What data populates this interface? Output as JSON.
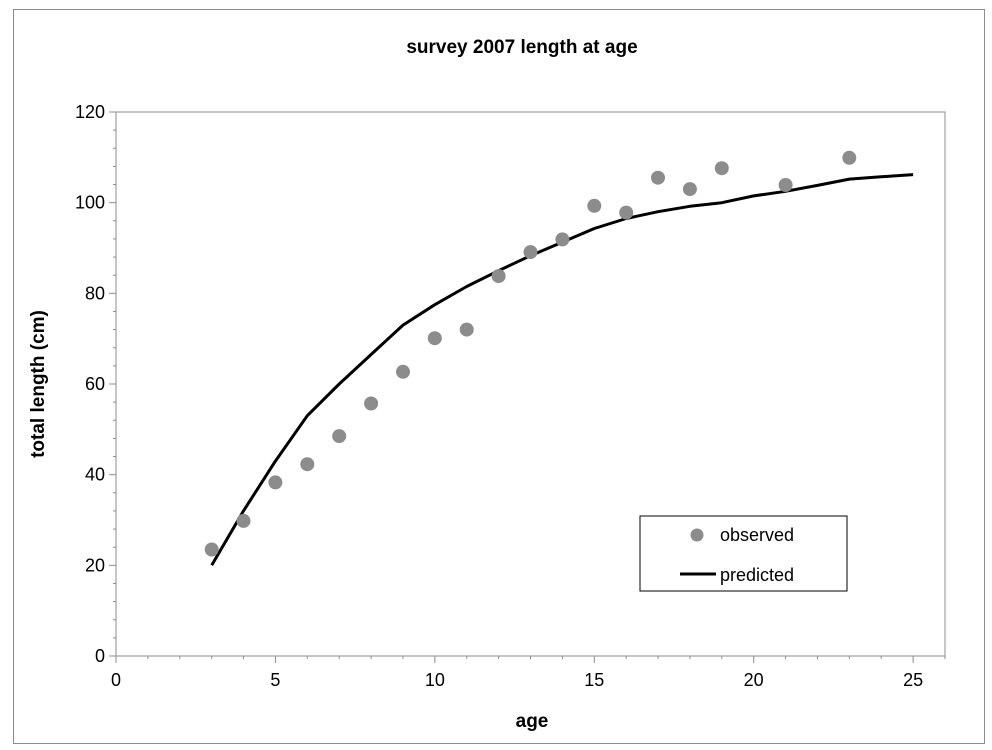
{
  "chart_data": {
    "type": "scatter",
    "title": "survey 2007 length at age",
    "xlabel": "age",
    "ylabel": "total length (cm)",
    "xlim": [
      0,
      26
    ],
    "ylim": [
      0,
      120
    ],
    "x_ticks": [
      0,
      5,
      10,
      15,
      20,
      25
    ],
    "y_ticks": [
      0,
      20,
      40,
      60,
      80,
      100,
      120
    ],
    "x_minor_step": 1,
    "y_minor_step": 4,
    "grid": false,
    "legend_position": "bottom-right",
    "series": [
      {
        "name": "observed",
        "kind": "points",
        "color": "#8c8c8c",
        "x": [
          3,
          4,
          5,
          6,
          7,
          8,
          9,
          10,
          11,
          12,
          13,
          14,
          15,
          16,
          17,
          18,
          19,
          21,
          23
        ],
        "y": [
          23.5,
          29.8,
          38.3,
          42.3,
          48.5,
          55.7,
          62.7,
          70.1,
          72,
          83.8,
          89.1,
          91.9,
          99.3,
          97.8,
          105.5,
          103,
          107.6,
          103.9,
          109.9
        ]
      },
      {
        "name": "predicted",
        "kind": "line",
        "color": "#000000",
        "x": [
          3,
          4,
          5,
          6,
          7,
          8,
          9,
          10,
          11,
          12,
          13,
          14,
          15,
          16,
          17,
          18,
          19,
          20,
          21,
          22,
          23,
          24,
          25
        ],
        "y": [
          20,
          32,
          43,
          53,
          60,
          66.5,
          73,
          77.5,
          81.5,
          85,
          88.3,
          91.3,
          94.3,
          96.5,
          98,
          99.2,
          100,
          101.5,
          102.5,
          103.8,
          105.2,
          105.7,
          106.2
        ]
      }
    ]
  }
}
